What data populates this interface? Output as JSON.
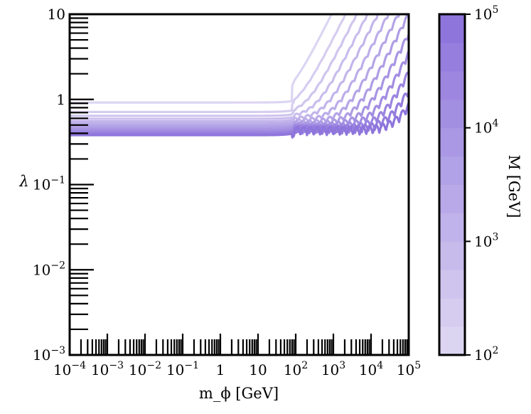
{
  "chart_data": {
    "type": "line",
    "title": "",
    "xlabel": "m_ϕ [GeV]",
    "ylabel": "λ",
    "x_scale": "log",
    "y_scale": "log",
    "xlim": [
      0.0001,
      100000
    ],
    "ylim": [
      0.001,
      10
    ],
    "x_tick_labels": [
      {
        "value": 0.0001,
        "base": "10",
        "exp": "−4"
      },
      {
        "value": 0.001,
        "base": "10",
        "exp": "−3"
      },
      {
        "value": 0.01,
        "base": "10",
        "exp": "−2"
      },
      {
        "value": 0.1,
        "base": "10",
        "exp": "−1"
      },
      {
        "value": 1,
        "base": "1",
        "exp": ""
      },
      {
        "value": 10,
        "base": "10",
        "exp": ""
      },
      {
        "value": 100,
        "base": "10",
        "exp": "2"
      },
      {
        "value": 1000,
        "base": "10",
        "exp": "3"
      },
      {
        "value": 10000,
        "base": "10",
        "exp": "4"
      },
      {
        "value": 100000,
        "base": "10",
        "exp": "5"
      }
    ],
    "y_tick_labels": [
      {
        "value": 0.001,
        "base": "10",
        "exp": "−3"
      },
      {
        "value": 0.01,
        "base": "10",
        "exp": "−2"
      },
      {
        "value": 0.1,
        "base": "10",
        "exp": "−1"
      },
      {
        "value": 1,
        "base": "1",
        "exp": ""
      },
      {
        "value": 10,
        "base": "10",
        "exp": ""
      }
    ],
    "grid": false,
    "legend": "none",
    "series_description": "family of curves lambda(m_phi), one per M value, colored by M",
    "curve_params": {
      "M_values_log10": [
        2.0,
        2.25,
        2.5,
        2.75,
        3.0,
        3.25,
        3.5,
        3.75,
        4.0,
        4.25,
        4.5,
        4.75,
        5.0
      ],
      "plateau_lambda_low_M": 0.92,
      "plateau_lambda_high_M": 0.38,
      "transition_m_phi": 80
    },
    "colorbar": {
      "label": "M [GeV]",
      "scale": "log",
      "range": [
        100,
        100000
      ],
      "tick_labels": [
        {
          "value": 100,
          "base": "10",
          "exp": "2"
        },
        {
          "value": 1000,
          "base": "10",
          "exp": "3"
        },
        {
          "value": 10000,
          "base": "10",
          "exp": "4"
        },
        {
          "value": 100000,
          "base": "10",
          "exp": "5"
        }
      ],
      "color_low": "#dcd5f2",
      "color_high": "#8e75dc",
      "levels": 12
    },
    "colors": {
      "axis": "#000000"
    }
  }
}
